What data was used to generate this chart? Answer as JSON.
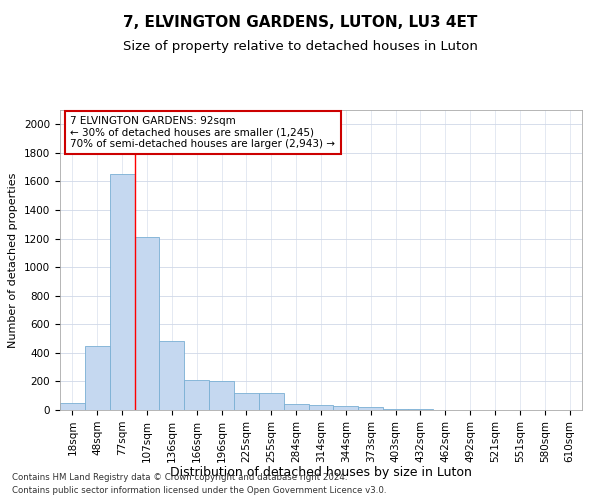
{
  "title": "7, ELVINGTON GARDENS, LUTON, LU3 4ET",
  "subtitle": "Size of property relative to detached houses in Luton",
  "xlabel": "Distribution of detached houses by size in Luton",
  "ylabel": "Number of detached properties",
  "categories": [
    "18sqm",
    "48sqm",
    "77sqm",
    "107sqm",
    "136sqm",
    "166sqm",
    "196sqm",
    "225sqm",
    "255sqm",
    "284sqm",
    "314sqm",
    "344sqm",
    "373sqm",
    "403sqm",
    "432sqm",
    "462sqm",
    "492sqm",
    "521sqm",
    "551sqm",
    "580sqm",
    "610sqm"
  ],
  "values": [
    50,
    450,
    1650,
    1210,
    480,
    210,
    200,
    120,
    120,
    40,
    35,
    25,
    20,
    8,
    4,
    2,
    1,
    0,
    0,
    0,
    0
  ],
  "bar_color": "#c5d8f0",
  "bar_edge_color": "#7aafd4",
  "bar_edge_width": 0.6,
  "red_line_x": 2.5,
  "annotation_text": "7 ELVINGTON GARDENS: 92sqm\n← 30% of detached houses are smaller (1,245)\n70% of semi-detached houses are larger (2,943) →",
  "annotation_box_color": "#ffffff",
  "annotation_box_edge_color": "#cc0000",
  "ylim": [
    0,
    2100
  ],
  "yticks": [
    0,
    200,
    400,
    600,
    800,
    1000,
    1200,
    1400,
    1600,
    1800,
    2000
  ],
  "title_fontsize": 11,
  "subtitle_fontsize": 9.5,
  "xlabel_fontsize": 9,
  "ylabel_fontsize": 8,
  "tick_fontsize": 7.5,
  "annotation_fontsize": 7.5,
  "footnote_line1": "Contains HM Land Registry data © Crown copyright and database right 2024.",
  "footnote_line2": "Contains public sector information licensed under the Open Government Licence v3.0.",
  "background_color": "#ffffff",
  "grid_color": "#d0d8e8"
}
